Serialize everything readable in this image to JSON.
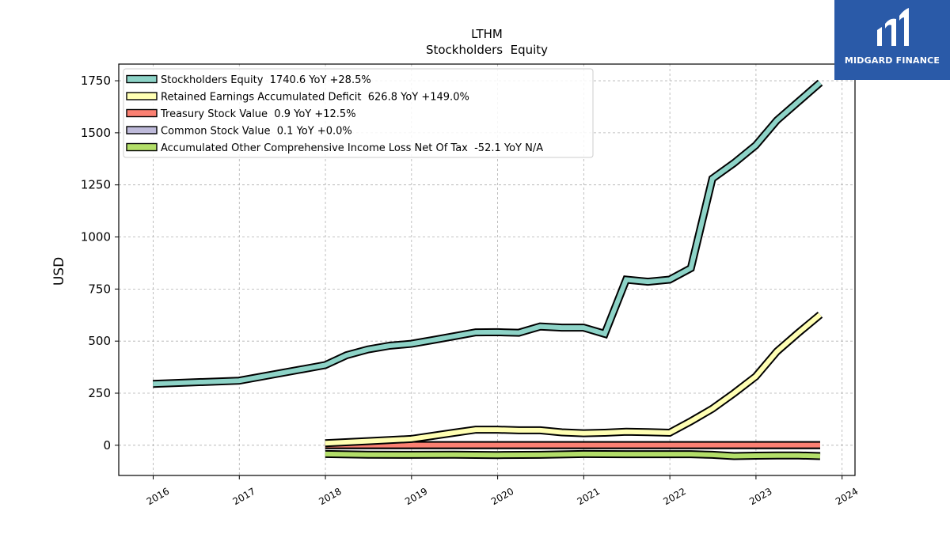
{
  "chart_data": {
    "type": "line",
    "title": "LTHM",
    "subtitle": "Stockholders  Equity",
    "ylabel": "USD",
    "xlabel": "",
    "x_range": [
      2015.6,
      2024.15
    ],
    "ylim": [
      -145,
      1830
    ],
    "y_ticks": [
      0,
      250,
      500,
      750,
      1000,
      1250,
      1500,
      1750
    ],
    "y_tick_labels": [
      "0",
      "250",
      "500",
      "750",
      "1000",
      "1250",
      "1500",
      "1750"
    ],
    "x_ticks": [
      2016,
      2017,
      2018,
      2019,
      2020,
      2021,
      2022,
      2023,
      2024
    ],
    "x_tick_labels": [
      "2016",
      "2017",
      "2018",
      "2019",
      "2020",
      "2021",
      "2022",
      "2023",
      "2024"
    ],
    "grid": true,
    "legend_position": "top-left",
    "series": [
      {
        "name": "Stockholders Equity",
        "legend": "Stockholders Equity  1740.6 YoY +28.5%",
        "color": "#8dd3c7",
        "x": [
          "2015-12-31",
          "2016-12-31",
          "2017-12-31",
          "2018-03-31",
          "2018-06-30",
          "2018-09-30",
          "2018-12-31",
          "2019-03-31",
          "2019-06-30",
          "2019-09-30",
          "2019-12-31",
          "2020-03-31",
          "2020-06-30",
          "2020-09-30",
          "2020-12-31",
          "2021-03-31",
          "2021-06-30",
          "2021-09-30",
          "2021-12-31",
          "2022-03-31",
          "2022-06-30",
          "2022-09-30",
          "2022-12-31",
          "2023-03-31",
          "2023-06-30",
          "2023-09-30"
        ],
        "y": [
          295,
          310,
          385,
          432,
          460,
          478,
          487,
          505,
          523,
          542,
          543,
          540,
          570,
          565,
          565,
          535,
          795,
          785,
          795,
          850,
          1280,
          1355,
          1440,
          1560,
          1650,
          1740.6
        ]
      },
      {
        "name": "Retained Earnings Accumulated Deficit",
        "legend": "Retained Earnings Accumulated Deficit  626.8 YoY +149.0%",
        "color": "#ffffb3",
        "x": [
          "2017-12-31",
          "2018-06-30",
          "2018-12-31",
          "2019-03-31",
          "2019-06-30",
          "2019-09-30",
          "2019-12-31",
          "2020-03-31",
          "2020-06-30",
          "2020-09-30",
          "2020-12-31",
          "2021-03-31",
          "2021-06-30",
          "2021-09-30",
          "2021-12-31",
          "2022-03-31",
          "2022-06-30",
          "2022-09-30",
          "2022-12-31",
          "2023-03-31",
          "2023-06-30",
          "2023-09-30"
        ],
        "y": [
          10,
          20,
          30,
          45,
          60,
          75,
          75,
          72,
          72,
          62,
          58,
          60,
          65,
          63,
          60,
          115,
          175,
          250,
          330,
          450,
          540,
          626.8
        ]
      },
      {
        "name": "Treasury Stock Value",
        "legend": "Treasury Stock Value  0.9 YoY +12.5%",
        "color": "#fb8072",
        "x": [
          "2017-12-31",
          "2023-09-30"
        ],
        "y": [
          0.8,
          0.9
        ]
      },
      {
        "name": "Common Stock Value",
        "legend": "Common Stock Value  0.1 YoY +0.0%",
        "color": "#bebada",
        "x": [
          "2017-12-31",
          "2023-09-30"
        ],
        "y": [
          0.1,
          0.1
        ]
      },
      {
        "name": "Accumulated Other Comprehensive Income Loss Net Of Tax",
        "legend": "Accumulated Other Comprehensive Income Loss Net Of Tax  -52.1 YoY N/A",
        "color": "#b3de69",
        "x": [
          "2017-12-31",
          "2018-06-30",
          "2018-12-31",
          "2019-06-30",
          "2019-12-31",
          "2020-06-30",
          "2020-12-31",
          "2021-06-30",
          "2021-12-31",
          "2022-03-31",
          "2022-06-30",
          "2022-09-30",
          "2022-12-31",
          "2023-03-31",
          "2023-06-30",
          "2023-09-30"
        ],
        "y": [
          -42,
          -45,
          -46,
          -45,
          -47,
          -46,
          -42,
          -43,
          -43,
          -43,
          -46,
          -52,
          -50,
          -49,
          -49,
          -52.1
        ]
      }
    ]
  },
  "logo": {
    "text": "MIDGARD FINANCE"
  }
}
